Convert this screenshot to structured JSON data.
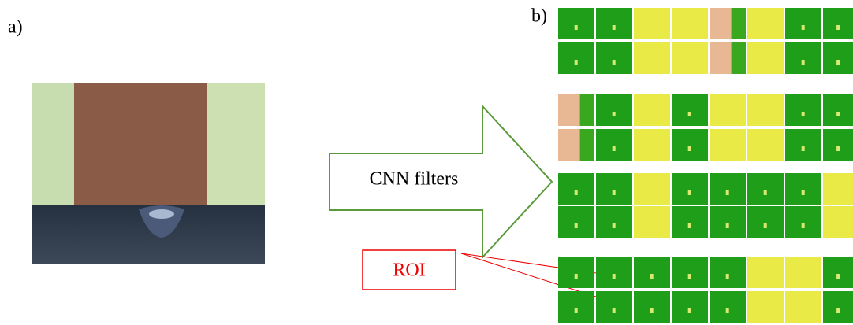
{
  "panel_labels": {
    "a": "a)",
    "b": "b)"
  },
  "arrow_label": "CNN filters",
  "roi_label": "ROI"
}
